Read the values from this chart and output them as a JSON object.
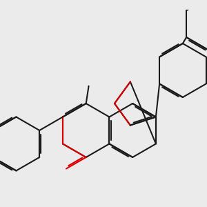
{
  "bg_color": "#ebebeb",
  "bond_color": "#1a1a1a",
  "oxygen_color": "#dd0000",
  "lw": 1.5,
  "dbo": 0.055,
  "figsize": [
    3.0,
    3.0
  ],
  "dpi": 100,
  "xlim": [
    -3.2,
    4.5
  ],
  "ylim": [
    -2.5,
    4.5
  ]
}
